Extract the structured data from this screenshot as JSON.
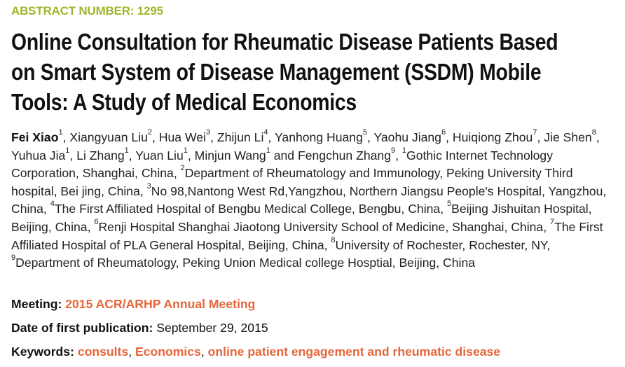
{
  "abstract_number": "ABSTRACT NUMBER: 1295",
  "title_lines": [
    "Online Consultation for Rheumatic Disease Patients Based",
    "on Smart System of Disease Management (SSDM) Mobile",
    "Tools: A Study of Medical Economics"
  ],
  "authors": [
    {
      "name": "Fei Xiao",
      "sup": "1",
      "bold": true
    },
    {
      "name": "Xiangyuan Liu",
      "sup": "2"
    },
    {
      "name": "Hua Wei",
      "sup": "3"
    },
    {
      "name": "Zhijun Li",
      "sup": "4"
    },
    {
      "name": "Yanhong Huang",
      "sup": "5"
    },
    {
      "name": "Yaohu Jiang",
      "sup": "6"
    },
    {
      "name": "Huiqiong Zhou",
      "sup": "7"
    },
    {
      "name": "Jie Shen",
      "sup": "8"
    },
    {
      "name": "Yuhua Jia",
      "sup": "1"
    },
    {
      "name": "Li Zhang",
      "sup": "1"
    },
    {
      "name": "Yuan Liu",
      "sup": "1"
    },
    {
      "name": "Minjun Wang",
      "sup": "1"
    },
    {
      "name": "Fengchun Zhang",
      "sup": "9"
    }
  ],
  "author_conjunction": "and",
  "affiliations": [
    {
      "sup": "1",
      "text": "Gothic Internet Technology Corporation, Shanghai, China"
    },
    {
      "sup": "2",
      "text": "Department of Rheumatology and Immunology, Peking University Third hospital, Bei jing, China"
    },
    {
      "sup": "3",
      "text": "No 98,Nantong West Rd,Yangzhou, Northern Jiangsu People's Hospital, Yangzhou, China"
    },
    {
      "sup": "4",
      "text": "The First Affiliated Hospital of Bengbu Medical College, Bengbu, China"
    },
    {
      "sup": "5",
      "text": "Beijing Jishuitan Hospital, Beijing, China"
    },
    {
      "sup": "6",
      "text": "Renji Hospital Shanghai Jiaotong University School of Medicine, Shanghai, China"
    },
    {
      "sup": "7",
      "text": "The First Affiliated Hospital of PLA General Hospital, Beijing, China"
    },
    {
      "sup": "8",
      "text": "University of Rochester, Rochester, NY"
    },
    {
      "sup": "9",
      "text": "Department of Rheumatology, Peking Union Medical college Hosptial, Beijing, China"
    }
  ],
  "meeting": {
    "label": "Meeting:",
    "value": "2015 ACR/ARHP Annual Meeting"
  },
  "publication": {
    "label": "Date of first publication:",
    "value": "September 29, 2015"
  },
  "keywords": {
    "label": "Keywords:",
    "items": [
      "consults",
      "Economics",
      "online patient engagement and rheumatic disease"
    ]
  },
  "colors": {
    "abstract_number": "#9db62a",
    "link": "#e8653a",
    "text": "#111111"
  }
}
